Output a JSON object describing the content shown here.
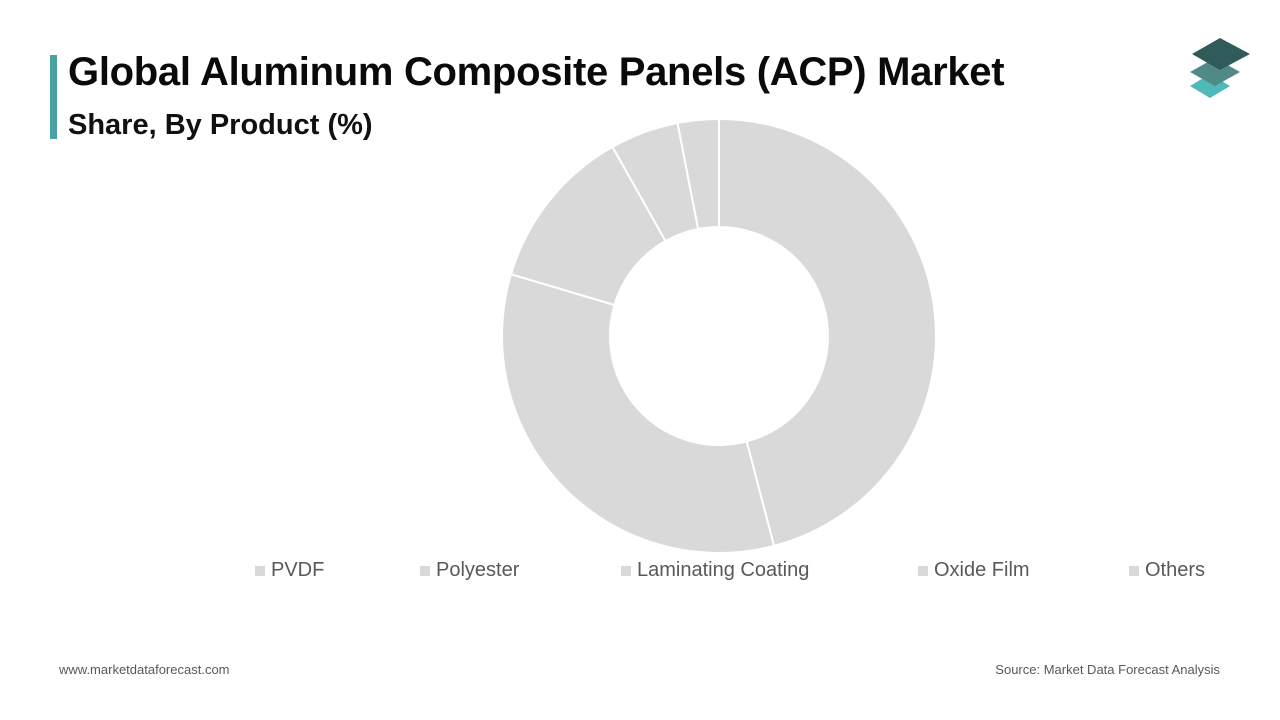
{
  "header": {
    "title": "Global Aluminum Composite Panels (ACP) Market",
    "subtitle": "Share, By Product (%)"
  },
  "colors": {
    "accent": "#4aa3a2",
    "slice": "#d9d9d9",
    "slice_border": "#ffffff",
    "logo_top": "#2f5c5a",
    "logo_mid": "#4f8a86",
    "logo_bottom": "#4fb8b8"
  },
  "logo": {
    "icon": "stacked-layers-icon"
  },
  "chart_data": {
    "type": "pie",
    "variant": "donut",
    "title": "Share, By Product (%)",
    "categories": [
      "PVDF",
      "Polyester",
      "Laminating Coating",
      "Oxide Film",
      "Others"
    ],
    "values": [
      45,
      33,
      12,
      5,
      3
    ],
    "legend_position": "bottom",
    "data_labels": false
  },
  "footer": {
    "website": "www.marketdataforecast.com",
    "source": "Source: Market Data Forecast Analysis"
  }
}
